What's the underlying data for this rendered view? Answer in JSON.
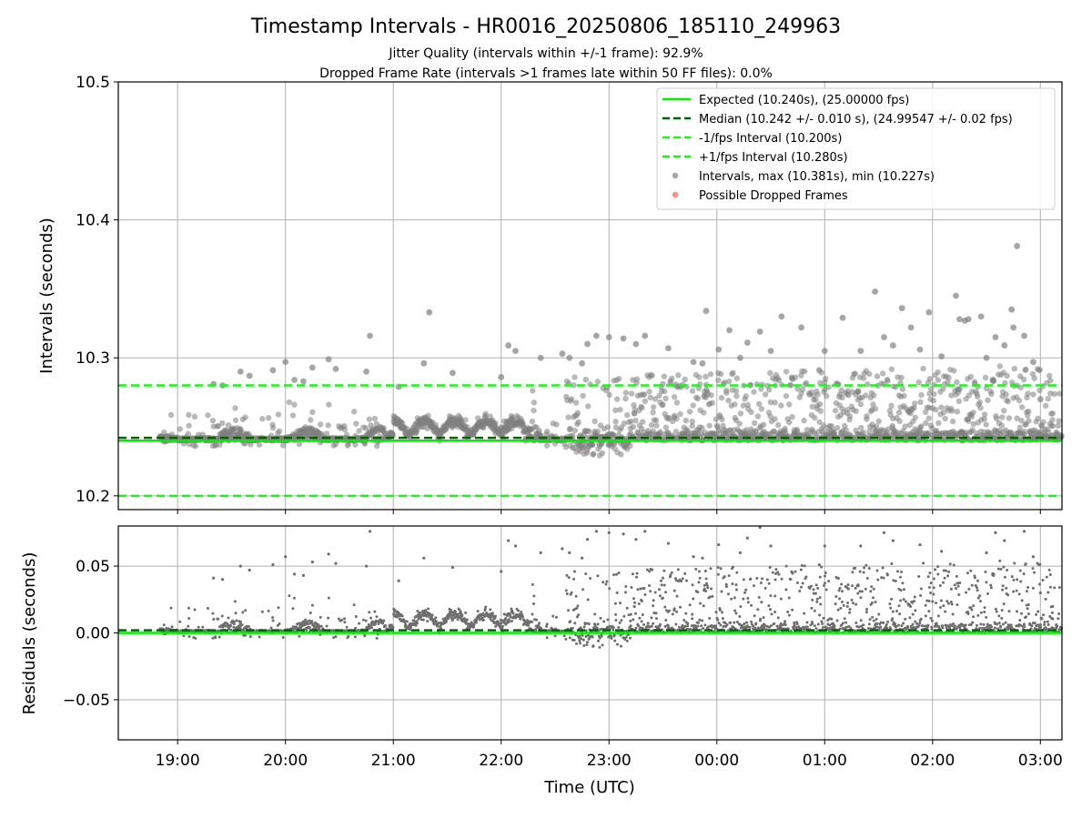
{
  "figure": {
    "title": "Timestamp Intervals - HR0016_20250806_185110_249963",
    "subtitle_1": "Jitter Quality (intervals within +/-1 frame): 92.9%",
    "subtitle_2": "Dropped Frame Rate (intervals >1 frames late within 50 FF files): 0.0%"
  },
  "colors": {
    "expected": "#00ee00",
    "median": "#006400",
    "interval_lines": "#22ee22",
    "points": "#808080",
    "dropped": "#ff5555",
    "grid": "#b0b0b0"
  },
  "chart_data": [
    {
      "type": "scatter",
      "name": "intervals",
      "ylabel": "Intervals (seconds)",
      "ylim": [
        10.19,
        10.5
      ],
      "yticks": [
        10.2,
        10.3,
        10.4,
        10.5
      ],
      "ytick_labels": [
        "10.2",
        "10.3",
        "10.4",
        "10.5"
      ],
      "grid": true,
      "legend_position": "top-right",
      "legend": [
        {
          "label": "Expected (10.240s), (25.00000 fps)",
          "style": "solid",
          "color": "#00ee00"
        },
        {
          "label": "Median (10.242 +/- 0.010 s), (24.99547 +/- 0.02 fps)",
          "style": "dashed",
          "color": "#006400"
        },
        {
          "label": "-1/fps Interval (10.200s)",
          "style": "dashed",
          "color": "#22ee22"
        },
        {
          "label": "+1/fps Interval (10.280s)",
          "style": "dashed",
          "color": "#22ee22"
        },
        {
          "label": "Intervals, max (10.381s), min (10.227s)",
          "style": "marker",
          "color": "#808080"
        },
        {
          "label": "Possible Dropped Frames",
          "style": "marker",
          "color": "#ff5555"
        }
      ],
      "reference_lines": {
        "expected": 10.24,
        "median": 10.242,
        "minus_1_fps": 10.2,
        "plus_1_fps": 10.28
      },
      "max_interval": 10.381,
      "min_interval": 10.227,
      "outlier_points": [
        {
          "x": "19:20",
          "y": 10.281
        },
        {
          "x": "19:25",
          "y": 10.28
        },
        {
          "x": "19:35",
          "y": 10.29
        },
        {
          "x": "19:40",
          "y": 10.287
        },
        {
          "x": "19:53",
          "y": 10.291
        },
        {
          "x": "20:00",
          "y": 10.297
        },
        {
          "x": "20:05",
          "y": 10.284
        },
        {
          "x": "20:10",
          "y": 10.283
        },
        {
          "x": "20:15",
          "y": 10.293
        },
        {
          "x": "20:24",
          "y": 10.299
        },
        {
          "x": "20:28",
          "y": 10.292
        },
        {
          "x": "20:45",
          "y": 10.29
        },
        {
          "x": "20:47",
          "y": 10.316
        },
        {
          "x": "21:03",
          "y": 10.279
        },
        {
          "x": "21:17",
          "y": 10.296
        },
        {
          "x": "21:20",
          "y": 10.333
        },
        {
          "x": "21:33",
          "y": 10.289
        },
        {
          "x": "22:00",
          "y": 10.286
        },
        {
          "x": "22:04",
          "y": 10.309
        },
        {
          "x": "22:08",
          "y": 10.305
        },
        {
          "x": "22:22",
          "y": 10.3
        },
        {
          "x": "22:34",
          "y": 10.303
        },
        {
          "x": "22:38",
          "y": 10.3
        },
        {
          "x": "22:45",
          "y": 10.296
        },
        {
          "x": "22:48",
          "y": 10.31
        },
        {
          "x": "22:53",
          "y": 10.316
        },
        {
          "x": "23:00",
          "y": 10.315
        },
        {
          "x": "23:08",
          "y": 10.314
        },
        {
          "x": "23:15",
          "y": 10.31
        },
        {
          "x": "23:20",
          "y": 10.316
        },
        {
          "x": "23:33",
          "y": 10.307
        },
        {
          "x": "23:47",
          "y": 10.297
        },
        {
          "x": "23:52",
          "y": 10.296
        },
        {
          "x": "23:54",
          "y": 10.334
        },
        {
          "x": "00:01",
          "y": 10.306
        },
        {
          "x": "00:07",
          "y": 10.32
        },
        {
          "x": "00:13",
          "y": 10.3
        },
        {
          "x": "00:17",
          "y": 10.311
        },
        {
          "x": "00:24",
          "y": 10.319
        },
        {
          "x": "00:30",
          "y": 10.305
        },
        {
          "x": "00:36",
          "y": 10.33
        },
        {
          "x": "00:47",
          "y": 10.322
        },
        {
          "x": "00:57",
          "y": 10.291
        },
        {
          "x": "01:00",
          "y": 10.305
        },
        {
          "x": "01:10",
          "y": 10.329
        },
        {
          "x": "01:20",
          "y": 10.305
        },
        {
          "x": "01:28",
          "y": 10.348
        },
        {
          "x": "01:33",
          "y": 10.315
        },
        {
          "x": "01:38",
          "y": 10.309
        },
        {
          "x": "01:43",
          "y": 10.336
        },
        {
          "x": "01:48",
          "y": 10.322
        },
        {
          "x": "01:53",
          "y": 10.306
        },
        {
          "x": "01:58",
          "y": 10.333
        },
        {
          "x": "02:05",
          "y": 10.301
        },
        {
          "x": "02:13",
          "y": 10.345
        },
        {
          "x": "02:15",
          "y": 10.328
        },
        {
          "x": "02:18",
          "y": 10.327
        },
        {
          "x": "02:20",
          "y": 10.328
        },
        {
          "x": "02:27",
          "y": 10.33
        },
        {
          "x": "02:30",
          "y": 10.3
        },
        {
          "x": "02:35",
          "y": 10.315
        },
        {
          "x": "02:40",
          "y": 10.309
        },
        {
          "x": "02:44",
          "y": 10.335
        },
        {
          "x": "02:45",
          "y": 10.322
        },
        {
          "x": "02:47",
          "y": 10.381
        },
        {
          "x": "02:51",
          "y": 10.316
        },
        {
          "x": "02:56",
          "y": 10.297
        },
        {
          "x": "03:00",
          "y": 10.27
        }
      ]
    },
    {
      "type": "scatter",
      "name": "residuals",
      "xlabel": "Time (UTC)",
      "ylabel": "Residuals (seconds)",
      "ylim": [
        -0.08,
        0.08
      ],
      "yticks": [
        -0.05,
        0.0,
        0.05
      ],
      "ytick_labels": [
        "−0.05",
        "0.00",
        "0.05"
      ],
      "xlim": [
        "18:27",
        "03:12"
      ],
      "xticks": [
        "19:00",
        "20:00",
        "21:00",
        "22:00",
        "23:00",
        "00:00",
        "01:00",
        "02:00",
        "03:00"
      ],
      "grid": true,
      "reference_lines": {
        "expected": 0.0,
        "median": 0.002
      }
    }
  ]
}
